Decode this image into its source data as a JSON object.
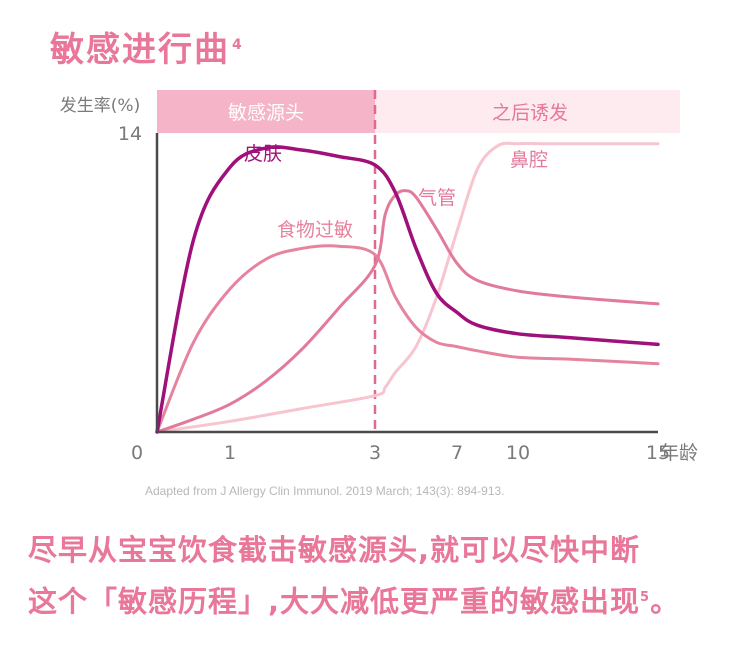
{
  "title": {
    "text": "敏感进行曲",
    "ref": "4"
  },
  "source": "Adapted from J Allergy Clin Immunol. 2019 March; 143(3): 894-913.",
  "conclusion": {
    "line1": "尽早从宝宝饮食截击敏感源头,就可以尽快中断",
    "line2": "这个「敏感历程」,大大减低更严重的敏感出现",
    "ref": "5"
  },
  "chart_data": {
    "type": "line",
    "ylabel": "发生率(%)",
    "xlabel": "年龄",
    "y_tick_labels": [
      "14"
    ],
    "x_tick_labels": [
      "0",
      "1",
      "3",
      "7",
      "10",
      "15"
    ],
    "ylim": [
      0,
      14
    ],
    "phases": [
      {
        "label": "敏感源头",
        "x_start": 0,
        "x_end": 3
      },
      {
        "label": "之后诱发",
        "x_start": 3,
        "x_end": 15
      }
    ],
    "divider_x": 3,
    "colors": {
      "skin": "#a0107a",
      "food": "#e6839f",
      "airway": "#e27a9c",
      "nose": "#f7c5cf",
      "phase1_bg": "#f5b4c8",
      "phase2_bg": "#fdebf0",
      "divider": "#e06a8f",
      "axis": "#4a4a4a"
    },
    "series": [
      {
        "name": "皮肤",
        "x": [
          0,
          0.5,
          1,
          1.5,
          2,
          2.5,
          3,
          4,
          5,
          6,
          7,
          8,
          10,
          12,
          15
        ],
        "y": [
          0,
          9.0,
          12.4,
          13.3,
          13.2,
          12.9,
          12.5,
          11.2,
          8.6,
          6.5,
          5.6,
          5.0,
          4.6,
          4.4,
          4.1
        ]
      },
      {
        "name": "食物过敏",
        "x": [
          0,
          0.5,
          1,
          1.5,
          2,
          2.5,
          3,
          4,
          5,
          6,
          7,
          8,
          10,
          12,
          15
        ],
        "y": [
          0,
          4.2,
          6.7,
          8.1,
          8.6,
          8.7,
          8.3,
          6.3,
          4.9,
          4.2,
          4.0,
          3.8,
          3.5,
          3.4,
          3.2
        ]
      },
      {
        "name": "气管",
        "x": [
          0,
          0.5,
          1,
          1.5,
          2,
          2.5,
          3,
          3.5,
          4,
          4.5,
          5,
          6,
          7,
          8,
          10,
          12,
          15
        ],
        "y": [
          0,
          0.6,
          1.3,
          2.4,
          3.9,
          5.8,
          7.8,
          10.2,
          11.1,
          11.3,
          11.0,
          9.5,
          7.9,
          7.1,
          6.6,
          6.3,
          6.0
        ]
      },
      {
        "name": "鼻腔",
        "x": [
          0,
          1,
          2,
          3,
          3.5,
          4,
          5,
          6,
          7,
          8,
          9,
          10,
          11,
          12,
          15
        ],
        "y": [
          0,
          0.5,
          1.1,
          1.7,
          2.1,
          2.8,
          4.0,
          6.3,
          9.4,
          12.3,
          13.4,
          13.5,
          13.5,
          13.5,
          13.5
        ]
      }
    ],
    "series_labels": [
      "皮肤",
      "食物过敏",
      "气管",
      "鼻腔"
    ]
  }
}
